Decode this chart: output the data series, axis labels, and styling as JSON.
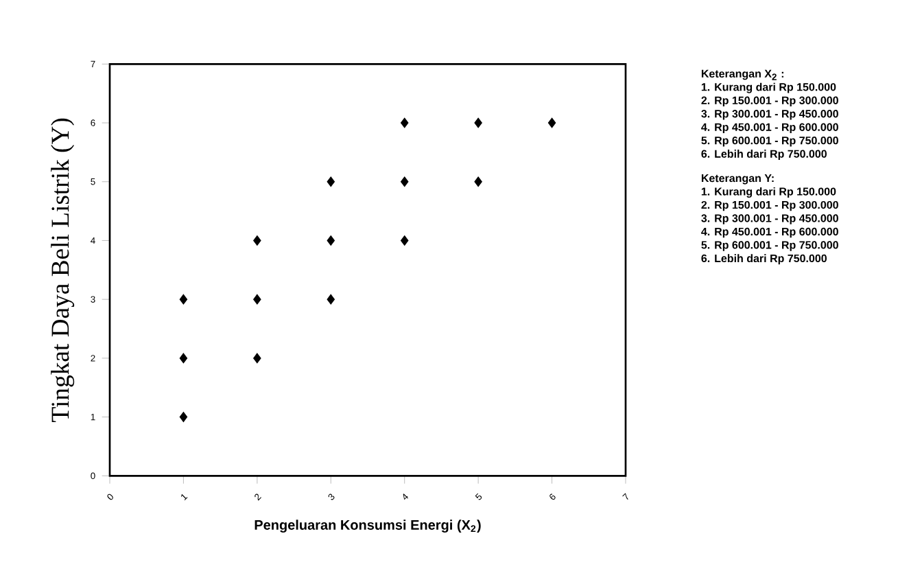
{
  "chart_data": {
    "type": "scatter",
    "xlabel": "Pengeluaran Konsumsi Energi (X$_{2}$)",
    "ylabel": "Tingkat Daya Beli Listrik (Y)",
    "x": [
      1,
      1,
      1,
      2,
      2,
      2,
      3,
      3,
      3,
      4,
      4,
      4,
      5,
      5,
      6
    ],
    "values": [
      1,
      2,
      3,
      2,
      3,
      4,
      3,
      4,
      5,
      4,
      5,
      6,
      5,
      6,
      6
    ],
    "color": "#000000",
    "marker": "diamond",
    "grid": false,
    "xlim": [
      0,
      7
    ],
    "ylim": [
      0,
      7
    ],
    "xticks": [
      0,
      1,
      2,
      3,
      4,
      5,
      6,
      7
    ],
    "yticks": [
      0,
      1,
      2,
      3,
      4,
      5,
      6,
      7
    ],
    "annotations": [
      "Keterangan X$_{2}$ :",
      "1. Kurang dari Rp 150.000",
      "2. Rp 150.001 - Rp 300.000",
      "3. Rp 300.001 - Rp 450.000",
      "4. Rp 450.001 - Rp 600.000",
      "5. Rp 600.001 - Rp 750.000",
      "6. Lebih dari Rp 750.000",
      "Keterangan Y:",
      "1. Kurang dari Rp 150.000",
      "2. Rp 150.001 - Rp 300.000",
      "3. Rp 300.001 - Rp 450.000",
      "4. Rp 450.001 - Rp 600.000",
      "5. Rp 600.001 - Rp 750.000",
      "6. Lebih dari Rp 750.000"
    ]
  }
}
